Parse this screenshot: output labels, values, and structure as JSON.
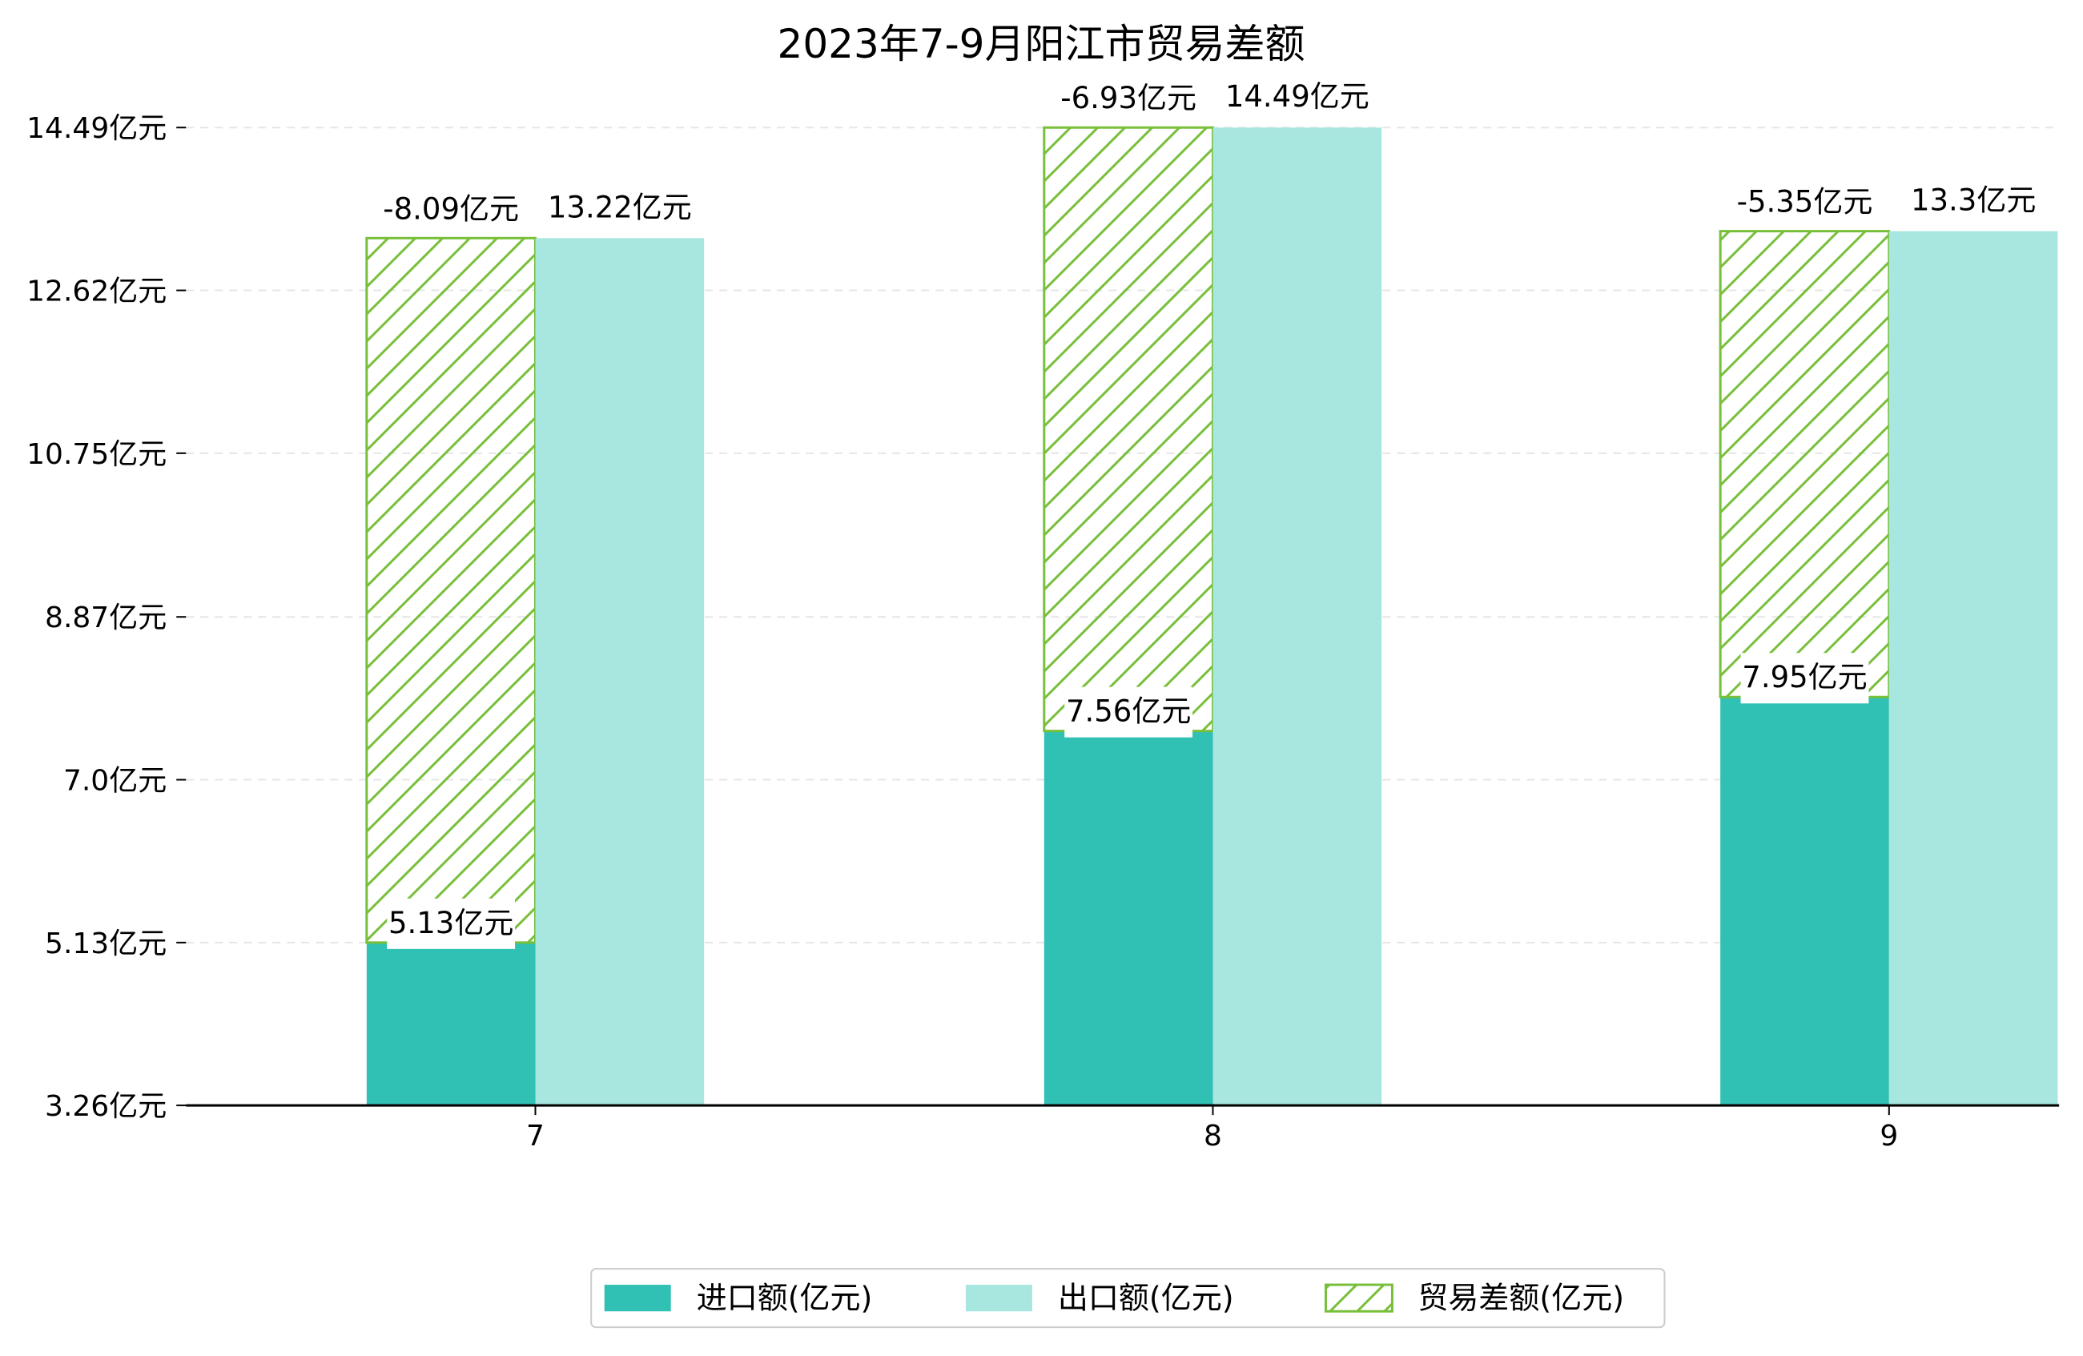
{
  "chart_data": {
    "type": "bar",
    "title": "2023年7-9月阳江市贸易差额",
    "categories": [
      "7",
      "8",
      "9"
    ],
    "ylim": [
      3.26,
      14.49
    ],
    "ytick_values": [
      3.26,
      5.13,
      7.0,
      8.87,
      10.75,
      12.62,
      14.49
    ],
    "ytick_labels": [
      "3.26亿元",
      "5.13亿元",
      "7.0亿元",
      "8.87亿元",
      "10.75亿元",
      "12.62亿元",
      "14.49亿元"
    ],
    "grid": true,
    "legend_position": "bottom-center",
    "series": [
      {
        "name": "进口额(亿元)",
        "color": "#30c0b4",
        "values": [
          5.13,
          7.56,
          7.95
        ],
        "labels": [
          "5.13亿元",
          "7.56亿元",
          "7.95亿元"
        ]
      },
      {
        "name": "出口额(亿元)",
        "color": "#a8e6e0",
        "values": [
          13.22,
          14.49,
          13.3
        ],
        "labels": [
          "13.22亿元",
          "14.49亿元",
          "13.3亿元"
        ]
      },
      {
        "name": "贸易差额(亿元)",
        "color": "#78bf3a",
        "hatched": true,
        "values": [
          -8.09,
          -6.93,
          -5.35
        ],
        "labels": [
          "-8.09亿元",
          "-6.93亿元",
          "-5.35亿元"
        ]
      }
    ]
  }
}
